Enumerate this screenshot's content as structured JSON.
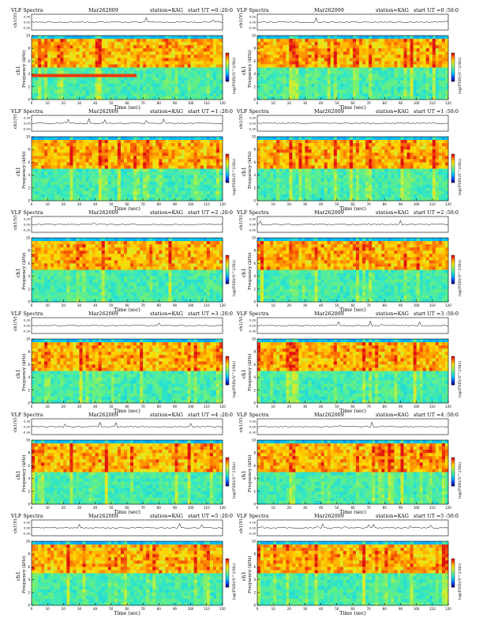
{
  "page_title": "VLF Spectra",
  "colors": {
    "background": "#ffffff",
    "axes": "#000000",
    "colormap": [
      "#0a0a8c",
      "#0050ff",
      "#00b8ff",
      "#2fe6c8",
      "#6cf07a",
      "#c8f03a",
      "#ffd800",
      "#ff7a00",
      "#e01010"
    ]
  },
  "chart_data": [
    {
      "type": "heatmap",
      "title_left": "VLF Spectra",
      "date": "Mar262009",
      "station": "station=KAG",
      "start": "start  UT =0 :20:0",
      "ch_label": "ch1(V)",
      "ch_ticks": [
        "0.30",
        "0.00",
        "-0.30"
      ],
      "ylabel_main": "ch1",
      "ylabel_sub": "Frequency (kHz)",
      "yticks": [
        "10",
        "8",
        "6",
        "4",
        "2",
        "0"
      ],
      "xticks": [
        "0",
        "10",
        "20",
        "30",
        "40",
        "50",
        "60",
        "70",
        "80",
        "90",
        "100",
        "110",
        "120"
      ],
      "xlabel": "Time (sec)",
      "xlim": [
        0,
        120
      ],
      "ylim": [
        0,
        10
      ],
      "colorbar_label": "log(PSD)(V^2/Hz)",
      "red_band_khz": [
        3.5,
        3.8
      ]
    },
    {
      "type": "heatmap",
      "title_left": "VLF Spectra",
      "date": "Mar262009",
      "station": "station=KAG",
      "start": "start  UT =0 :50:0",
      "ch_label": "ch1(V)",
      "ch_ticks": [
        "0.30",
        "0.00",
        "-0.30"
      ],
      "ylabel_main": "ch1",
      "ylabel_sub": "Frequency (kHz)",
      "yticks": [
        "10",
        "8",
        "6",
        "4",
        "2",
        "0"
      ],
      "xticks": [
        "0",
        "10",
        "20",
        "30",
        "40",
        "50",
        "60",
        "70",
        "80",
        "90",
        "100",
        "110",
        "120"
      ],
      "xlabel": "Time (sec)",
      "xlim": [
        0,
        120
      ],
      "ylim": [
        0,
        10
      ],
      "colorbar_label": "log(PSD)(V^2/Hz)"
    },
    {
      "type": "heatmap",
      "title_left": "VLF Spectra",
      "date": "Mar262009",
      "station": "station=KAG",
      "start": "start  UT =1 :20:0",
      "ch_label": "ch1(V)",
      "ch_ticks": [
        "0.30",
        "0.00",
        "-0.30"
      ],
      "ylabel_main": "ch1",
      "ylabel_sub": "Frequency (kHz)",
      "yticks": [
        "10",
        "8",
        "6",
        "4",
        "2",
        "0"
      ],
      "xticks": [
        "0",
        "10",
        "20",
        "30",
        "40",
        "50",
        "60",
        "70",
        "80",
        "90",
        "100",
        "110",
        "120"
      ],
      "xlabel": "Time (sec)",
      "xlim": [
        0,
        120
      ],
      "ylim": [
        0,
        10
      ],
      "colorbar_label": "log(PSD)(V^2/Hz)"
    },
    {
      "type": "heatmap",
      "title_left": "VLF Spectra",
      "date": "Mar262009",
      "station": "station=KAG",
      "start": "start  UT =1 :50:0",
      "ch_label": "ch1(V)",
      "ch_ticks": [
        "0.30",
        "0.00",
        "-0.30"
      ],
      "ylabel_main": "ch1",
      "ylabel_sub": "Frequency (kHz)",
      "yticks": [
        "10",
        "8",
        "6",
        "4",
        "2",
        "0"
      ],
      "xticks": [
        "0",
        "10",
        "20",
        "30",
        "40",
        "50",
        "60",
        "70",
        "80",
        "90",
        "100",
        "110",
        "120"
      ],
      "xlabel": "Time (sec)",
      "xlim": [
        0,
        120
      ],
      "ylim": [
        0,
        10
      ],
      "colorbar_label": "log(PSD)(V^2/Hz)"
    },
    {
      "type": "heatmap",
      "title_left": "VLF Spectra",
      "date": "Mar262009",
      "station": "station=KAG",
      "start": "start  UT =2 :20:0",
      "ch_label": "ch1(V)",
      "ch_ticks": [
        "0.30",
        "0.00",
        "-0.30"
      ],
      "ylabel_main": "ch1",
      "ylabel_sub": "Frequency (kHz)",
      "yticks": [
        "10",
        "8",
        "6",
        "4",
        "2",
        "0"
      ],
      "xticks": [
        "0",
        "10",
        "20",
        "30",
        "40",
        "50",
        "60",
        "70",
        "80",
        "90",
        "100",
        "110",
        "120"
      ],
      "xlabel": "Time (sec)",
      "xlim": [
        0,
        120
      ],
      "ylim": [
        0,
        10
      ],
      "colorbar_label": "log(PSD)(V^2/Hz)"
    },
    {
      "type": "heatmap",
      "title_left": "VLF Spectra",
      "date": "Mar262009",
      "station": "station=KAG",
      "start": "start  UT =2 :50:0",
      "ch_label": "ch1(V)",
      "ch_ticks": [
        "0.30",
        "0.00",
        "-0.30"
      ],
      "ylabel_main": "ch1",
      "ylabel_sub": "Frequency (kHz)",
      "yticks": [
        "10",
        "8",
        "6",
        "4",
        "2",
        "0"
      ],
      "xticks": [
        "0",
        "10",
        "20",
        "30",
        "40",
        "50",
        "60",
        "70",
        "80",
        "90",
        "100",
        "110",
        "120"
      ],
      "xlabel": "Time (sec)",
      "xlim": [
        0,
        120
      ],
      "ylim": [
        0,
        10
      ],
      "colorbar_label": "log(PSD)(V^2/Hz)"
    },
    {
      "type": "heatmap",
      "title_left": "VLF Spectra",
      "date": "Mar262009",
      "station": "station=KAG",
      "start": "start  UT =3 :20:0",
      "ch_label": "ch1(V)",
      "ch_ticks": [
        "0.30",
        "0.00",
        "-0.30"
      ],
      "ylabel_main": "ch1",
      "ylabel_sub": "Frequency (kHz)",
      "yticks": [
        "10",
        "8",
        "6",
        "4",
        "2",
        "0"
      ],
      "xticks": [
        "0",
        "10",
        "20",
        "30",
        "40",
        "50",
        "60",
        "70",
        "80",
        "90",
        "100",
        "110",
        "120"
      ],
      "xlabel": "Time (sec)",
      "xlim": [
        0,
        120
      ],
      "ylim": [
        0,
        10
      ],
      "colorbar_label": "log(PSD)(V^2/Hz)"
    },
    {
      "type": "heatmap",
      "title_left": "VLF Spectra",
      "date": "Mar262009",
      "station": "station=KAG",
      "start": "start  UT =3 :50:0",
      "ch_label": "ch1(V)",
      "ch_ticks": [
        "0.30",
        "0.00",
        "-0.30"
      ],
      "ylabel_main": "ch1",
      "ylabel_sub": "Frequency (kHz)",
      "yticks": [
        "10",
        "8",
        "6",
        "4",
        "2",
        "0"
      ],
      "xticks": [
        "0",
        "10",
        "20",
        "30",
        "40",
        "50",
        "60",
        "70",
        "80",
        "90",
        "100",
        "110",
        "120"
      ],
      "xlabel": "Time (sec)",
      "xlim": [
        0,
        120
      ],
      "ylim": [
        0,
        10
      ],
      "colorbar_label": "log(PSD)(V^2/Hz)"
    },
    {
      "type": "heatmap",
      "title_left": "VLF Spectra",
      "date": "Mar262009",
      "station": "station=KAG",
      "start": "start  UT =4 :20:0",
      "ch_label": "ch1(V)",
      "ch_ticks": [
        "0.30",
        "0.00",
        "-0.30"
      ],
      "ylabel_main": "ch1",
      "ylabel_sub": "Frequency (kHz)",
      "yticks": [
        "10",
        "8",
        "6",
        "4",
        "2",
        "0"
      ],
      "xticks": [
        "0",
        "10",
        "20",
        "30",
        "40",
        "50",
        "60",
        "70",
        "80",
        "90",
        "100",
        "110",
        "120"
      ],
      "xlabel": "Time (sec)",
      "xlim": [
        0,
        120
      ],
      "ylim": [
        0,
        10
      ],
      "colorbar_label": "log(PSD)(V^2/Hz)"
    },
    {
      "type": "heatmap",
      "title_left": "VLF Spectra",
      "date": "Mar262009",
      "station": "station=KAG",
      "start": "start  UT =4 :50:0",
      "ch_label": "ch1(V)",
      "ch_ticks": [
        "0.30",
        "0.00",
        "-0.30"
      ],
      "ylabel_main": "ch1",
      "ylabel_sub": "Frequency (kHz)",
      "yticks": [
        "10",
        "8",
        "6",
        "4",
        "2",
        "0"
      ],
      "xticks": [
        "0",
        "10",
        "20",
        "30",
        "40",
        "50",
        "60",
        "70",
        "80",
        "90",
        "100",
        "110",
        "120"
      ],
      "xlabel": "Time (sec)",
      "xlim": [
        0,
        120
      ],
      "ylim": [
        0,
        10
      ],
      "colorbar_label": "log(PSD)(V^2/Hz)"
    },
    {
      "type": "heatmap",
      "title_left": "VLF Spectra",
      "date": "Mar262009",
      "station": "station=KAG",
      "start": "start  UT =5 :20:0",
      "ch_label": "ch1(V)",
      "ch_ticks": [
        "0.30",
        "0.00",
        "-0.30"
      ],
      "ylabel_main": "ch1",
      "ylabel_sub": "Frequency (kHz)",
      "yticks": [
        "10",
        "8",
        "6",
        "4",
        "2",
        "0"
      ],
      "xticks": [
        "0",
        "10",
        "20",
        "30",
        "40",
        "50",
        "60",
        "70",
        "80",
        "90",
        "100",
        "110",
        "120"
      ],
      "xlabel": "Time (sec)",
      "xlim": [
        0,
        120
      ],
      "ylim": [
        0,
        10
      ],
      "colorbar_label": "log(PSD)(V^2/Hz)"
    },
    {
      "type": "heatmap",
      "title_left": "VLF Spectra",
      "date": "Mar262009",
      "station": "station=KAG",
      "start": "start  UT =5 :50:0",
      "ch_label": "ch1(V)",
      "ch_ticks": [
        "0.30",
        "0.00",
        "-0.30"
      ],
      "ylabel_main": "ch1",
      "ylabel_sub": "Frequency (kHz)",
      "yticks": [
        "10",
        "8",
        "6",
        "4",
        "2",
        "0"
      ],
      "xticks": [
        "0",
        "10",
        "20",
        "30",
        "40",
        "50",
        "60",
        "70",
        "80",
        "90",
        "100",
        "110",
        "120"
      ],
      "xlabel": "Time (sec)",
      "xlim": [
        0,
        120
      ],
      "ylim": [
        0,
        10
      ],
      "colorbar_label": "log(PSD)(V^2/Hz)"
    }
  ]
}
